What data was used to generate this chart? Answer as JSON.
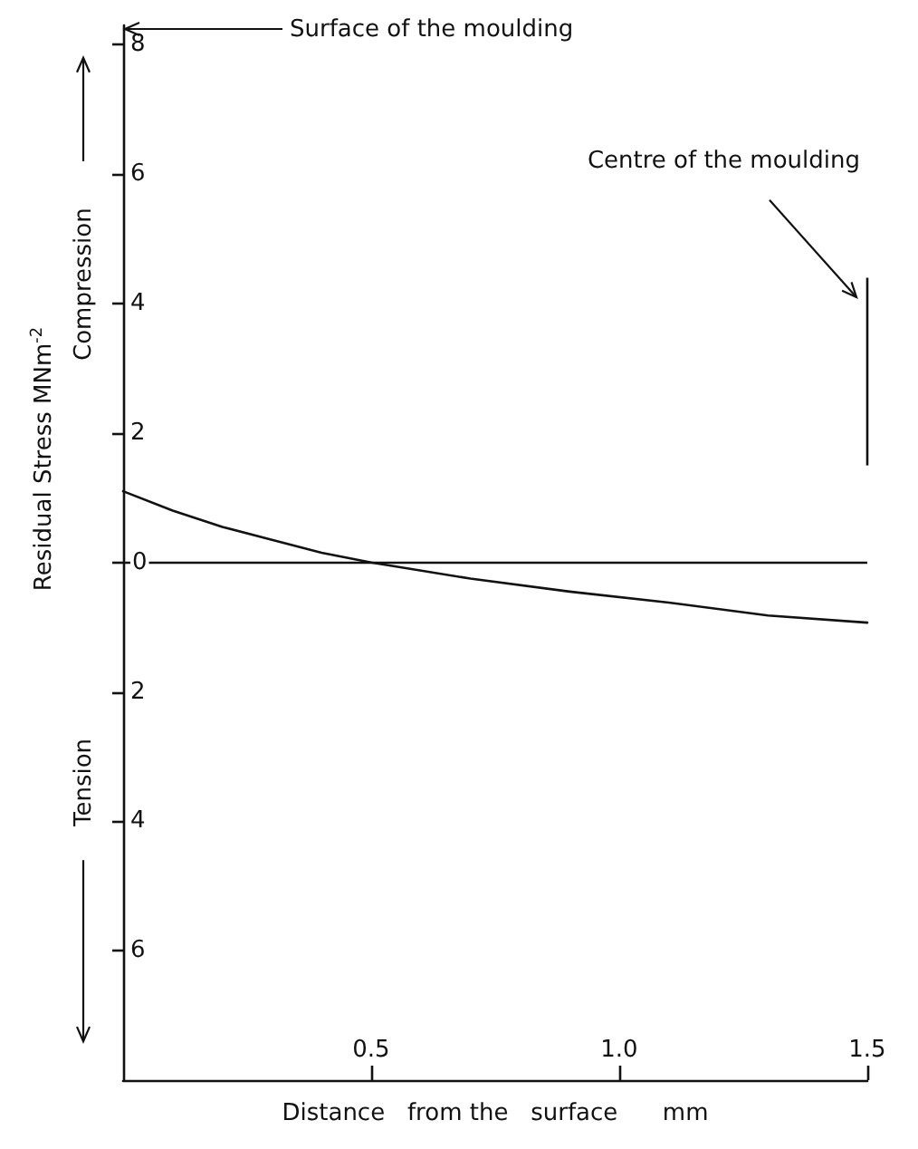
{
  "chart_data": {
    "type": "line",
    "xlabel": "Distance   from the   surface      mm",
    "ylabel": "Residual  Stress    MNm$^{-2}$",
    "x": [
      0,
      0.1,
      0.2,
      0.3,
      0.4,
      0.5,
      0.7,
      0.9,
      1.1,
      1.3,
      1.5
    ],
    "series": [
      {
        "color": "#111111",
        "values": [
          1.1,
          0.8,
          0.55,
          0.35,
          0.15,
          0,
          -0.25,
          -0.45,
          -0.62,
          -0.82,
          -0.93
        ]
      }
    ],
    "xlim": [
      0,
      1.5
    ],
    "xticks": [
      0.5,
      {
        "value": 1,
        "label": "1.0"
      },
      1.5
    ],
    "ylim": [
      -8,
      8.3
    ],
    "yticks": [
      {
        "value": -6,
        "label": "6"
      },
      {
        "value": -4,
        "label": "4"
      },
      {
        "value": -2,
        "label": "2"
      },
      0,
      2,
      4,
      6,
      8
    ],
    "ref_lines": [
      {
        "axis": "y",
        "value": 0,
        "color": "#111111"
      }
    ],
    "annotations": [
      "Surface of the moulding",
      "Centre of the moulding",
      "Compression",
      "Tension"
    ],
    "grid": false,
    "marker": "none",
    "line_style": "solid"
  }
}
